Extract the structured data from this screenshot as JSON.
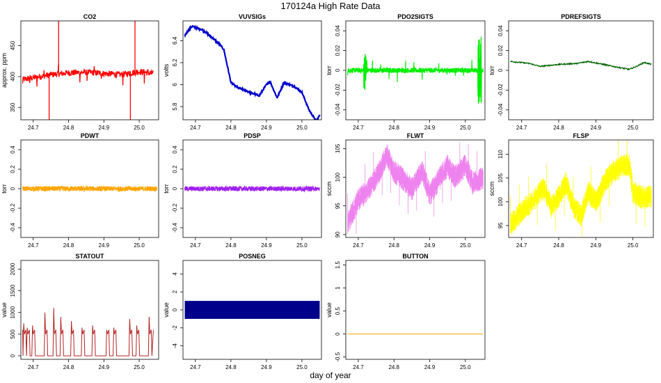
{
  "page": {
    "title": "170124a   High Rate Data",
    "xlabel": "day of year"
  },
  "chart_data": [
    {
      "type": "line",
      "title": "CO2",
      "ylabel": "approx. ppm",
      "color": "#ff0000",
      "xlim": [
        24.665,
        25.055
      ],
      "ylim": [
        330,
        490
      ],
      "yticks": [
        350,
        400,
        450
      ],
      "xticks": [
        24.7,
        24.8,
        24.9,
        25.0
      ],
      "shape": "co2",
      "series": [
        {
          "x": [
            24.67,
            24.7,
            24.75,
            24.8,
            24.85,
            24.9,
            24.95,
            25.0,
            25.04
          ],
          "values": [
            395,
            398,
            403,
            406,
            407,
            405,
            403,
            408,
            405
          ]
        }
      ]
    },
    {
      "type": "line",
      "title": "VUVSIGs",
      "ylabel": "volts",
      "color": "#0000cc",
      "xlim": [
        24.665,
        25.055
      ],
      "ylim": [
        5.68,
        6.58
      ],
      "yticks": [
        5.8,
        6.0,
        6.2,
        6.4
      ],
      "xticks": [
        24.7,
        24.8,
        24.9,
        25.0
      ],
      "shape": "vuv",
      "series": [
        {
          "x": [
            24.67,
            24.69,
            24.72,
            24.75,
            24.77,
            24.78,
            24.8,
            24.82,
            24.84,
            24.86,
            24.88,
            24.9,
            24.91,
            24.93,
            24.95,
            24.98,
            25.0,
            25.02,
            25.04,
            25.05
          ],
          "values": [
            6.45,
            6.53,
            6.5,
            6.42,
            6.36,
            6.32,
            6.02,
            5.97,
            5.95,
            5.92,
            5.9,
            6.0,
            6.03,
            5.88,
            6.02,
            5.98,
            5.93,
            5.77,
            5.67,
            5.72
          ]
        }
      ]
    },
    {
      "type": "line",
      "title": "PDO2SIGTS",
      "ylabel": "torr",
      "color": "#00ee00",
      "xlim": [
        24.665,
        25.055
      ],
      "ylim": [
        -0.05,
        0.05
      ],
      "yticks": [
        -0.04,
        -0.02,
        0.0,
        0.02,
        0.04
      ],
      "xticks": [
        24.7,
        24.8,
        24.9,
        25.0
      ],
      "shape": "noise",
      "series": [
        {
          "x": [
            24.67,
            25.05
          ],
          "values": [
            0.0,
            0.0
          ]
        }
      ]
    },
    {
      "type": "line",
      "title": "PDREFSIGTS",
      "ylabel": "torr",
      "color": "#006400",
      "xlim": [
        24.665,
        25.055
      ],
      "ylim": [
        -0.05,
        0.05
      ],
      "yticks": [
        -0.04,
        -0.02,
        0.0,
        0.02,
        0.04
      ],
      "xticks": [
        24.7,
        24.8,
        24.9,
        25.0
      ],
      "shape": "ref",
      "series": [
        {
          "x": [
            24.67,
            24.72,
            24.75,
            24.8,
            24.85,
            24.88,
            24.92,
            24.96,
            24.99,
            25.01,
            25.03,
            25.05
          ],
          "values": [
            0.009,
            0.007,
            0.004,
            0.006,
            0.007,
            0.009,
            0.006,
            0.003,
            0.001,
            0.004,
            0.008,
            0.006
          ]
        }
      ]
    },
    {
      "type": "line",
      "title": "PDWT",
      "ylabel": "torr",
      "color": "#ffa500",
      "xlim": [
        24.665,
        25.055
      ],
      "ylim": [
        -0.5,
        0.5
      ],
      "yticks": [
        -0.4,
        -0.2,
        0.0,
        0.2,
        0.4
      ],
      "xticks": [
        24.7,
        24.8,
        24.9,
        25.0
      ],
      "shape": "band",
      "series": [
        {
          "x": [
            24.67,
            25.05
          ],
          "values": [
            0.0,
            0.0
          ]
        }
      ]
    },
    {
      "type": "line",
      "title": "PDSP",
      "ylabel": "torr",
      "color": "#a020f0",
      "xlim": [
        24.665,
        25.055
      ],
      "ylim": [
        -0.5,
        0.5
      ],
      "yticks": [
        -0.4,
        -0.2,
        0.0,
        0.2,
        0.4
      ],
      "xticks": [
        24.7,
        24.8,
        24.9,
        25.0
      ],
      "shape": "band",
      "series": [
        {
          "x": [
            24.67,
            25.05
          ],
          "values": [
            0.0,
            0.0
          ]
        }
      ]
    },
    {
      "type": "line",
      "title": "FLWT",
      "ylabel": "sccm",
      "color": "#ee82ee",
      "xlim": [
        24.665,
        25.055
      ],
      "ylim": [
        89.5,
        106.5
      ],
      "yticks": [
        90,
        95,
        100,
        105
      ],
      "xticks": [
        24.7,
        24.8,
        24.9,
        25.0
      ],
      "shape": "fl",
      "series": [
        {
          "x": [
            24.67,
            24.7,
            24.73,
            24.76,
            24.78,
            24.8,
            24.82,
            24.85,
            24.88,
            24.9,
            24.92,
            24.95,
            24.97,
            25.0,
            25.02,
            25.05
          ],
          "values": [
            92,
            96,
            98,
            101,
            104,
            101,
            100,
            98,
            101,
            97,
            99,
            102,
            100,
            102,
            99,
            100
          ]
        }
      ]
    },
    {
      "type": "line",
      "title": "FLSP",
      "ylabel": "sccm",
      "color": "#ffff00",
      "xlim": [
        24.665,
        25.055
      ],
      "ylim": [
        92.5,
        113
      ],
      "yticks": [
        95,
        100,
        105,
        110
      ],
      "xticks": [
        24.7,
        24.8,
        24.9,
        25.0
      ],
      "shape": "fl",
      "series": [
        {
          "x": [
            24.67,
            24.7,
            24.73,
            24.76,
            24.78,
            24.8,
            24.82,
            24.84,
            24.86,
            24.88,
            24.9,
            24.93,
            24.96,
            24.99,
            25.0,
            25.02,
            25.05
          ],
          "values": [
            95,
            98,
            100,
            103,
            99,
            101,
            104,
            99,
            97,
            102,
            100,
            105,
            107,
            108,
            102,
            101,
            101
          ]
        }
      ]
    },
    {
      "type": "line",
      "title": "STATOUT",
      "ylabel": "value",
      "color": "#b22222",
      "xlim": [
        24.665,
        25.055
      ],
      "ylim": [
        -80,
        2200
      ],
      "yticks": [
        0,
        500,
        1000,
        1500,
        2000
      ],
      "xticks": [
        24.7,
        24.8,
        24.9,
        25.0
      ],
      "shape": "stat",
      "series": [
        {
          "x": [
            24.67,
            24.7,
            24.76,
            24.8,
            24.84,
            24.9,
            24.94,
            24.97,
            25.0,
            25.04
          ],
          "values": [
            600,
            0,
            1100,
            0,
            800,
            0,
            650,
            900,
            0,
            600
          ]
        }
      ]
    },
    {
      "type": "line",
      "title": "POSNEG",
      "ylabel": "value",
      "color": "#00008b",
      "xlim": [
        24.665,
        25.055
      ],
      "ylim": [
        -5.5,
        5.5
      ],
      "yticks": [
        -4,
        -2,
        0,
        2,
        4
      ],
      "xticks": [
        24.7,
        24.8,
        24.9,
        25.0
      ],
      "shape": "posneg",
      "series": [
        {
          "x": [
            24.67,
            25.05
          ],
          "values": [
            1,
            -1
          ]
        }
      ]
    },
    {
      "type": "line",
      "title": "BUTTON",
      "ylabel": "value",
      "color": "#ffa500",
      "xlim": [
        24.665,
        25.055
      ],
      "ylim": [
        -0.55,
        1.6
      ],
      "yticks": [
        -0.5,
        0.0,
        0.5,
        1.0,
        1.5
      ],
      "xticks": [
        24.7,
        24.8,
        24.9,
        25.0
      ],
      "shape": "flat",
      "series": [
        {
          "x": [
            24.67,
            25.05
          ],
          "values": [
            0,
            0
          ]
        }
      ]
    }
  ]
}
